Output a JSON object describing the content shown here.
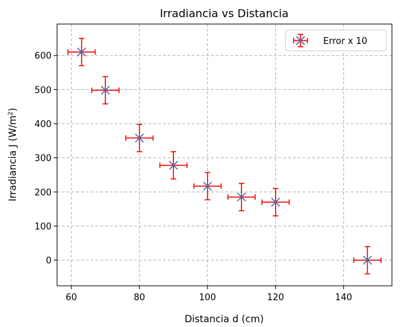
{
  "chart_data": {
    "type": "scatter",
    "title": "Irradiancia vs Distancia",
    "xlabel": "Distancia d (cm)",
    "ylabel_main": "Irradiancia J (W/m",
    "ylabel_sup": "2",
    "ylabel_end": ")",
    "xlim": [
      55.8,
      154.2
    ],
    "ylim": [
      -75,
      692
    ],
    "xticks": [
      60,
      80,
      100,
      120,
      140
    ],
    "yticks": [
      0,
      100,
      200,
      300,
      400,
      500,
      600
    ],
    "grid": true,
    "legend_position": "top-right",
    "series": [
      {
        "name": "Error x 10",
        "marker_color": "#4c72b0",
        "error_color": "#ff0000",
        "x": [
          63,
          70,
          80,
          90,
          100,
          110,
          120,
          147
        ],
        "y": [
          610,
          498,
          358,
          278,
          217,
          185,
          170,
          0
        ],
        "xerr": [
          4,
          4,
          4,
          4,
          4,
          4,
          4,
          4
        ],
        "yerr": [
          40,
          40,
          40,
          40,
          40,
          40,
          40,
          40
        ]
      }
    ]
  }
}
